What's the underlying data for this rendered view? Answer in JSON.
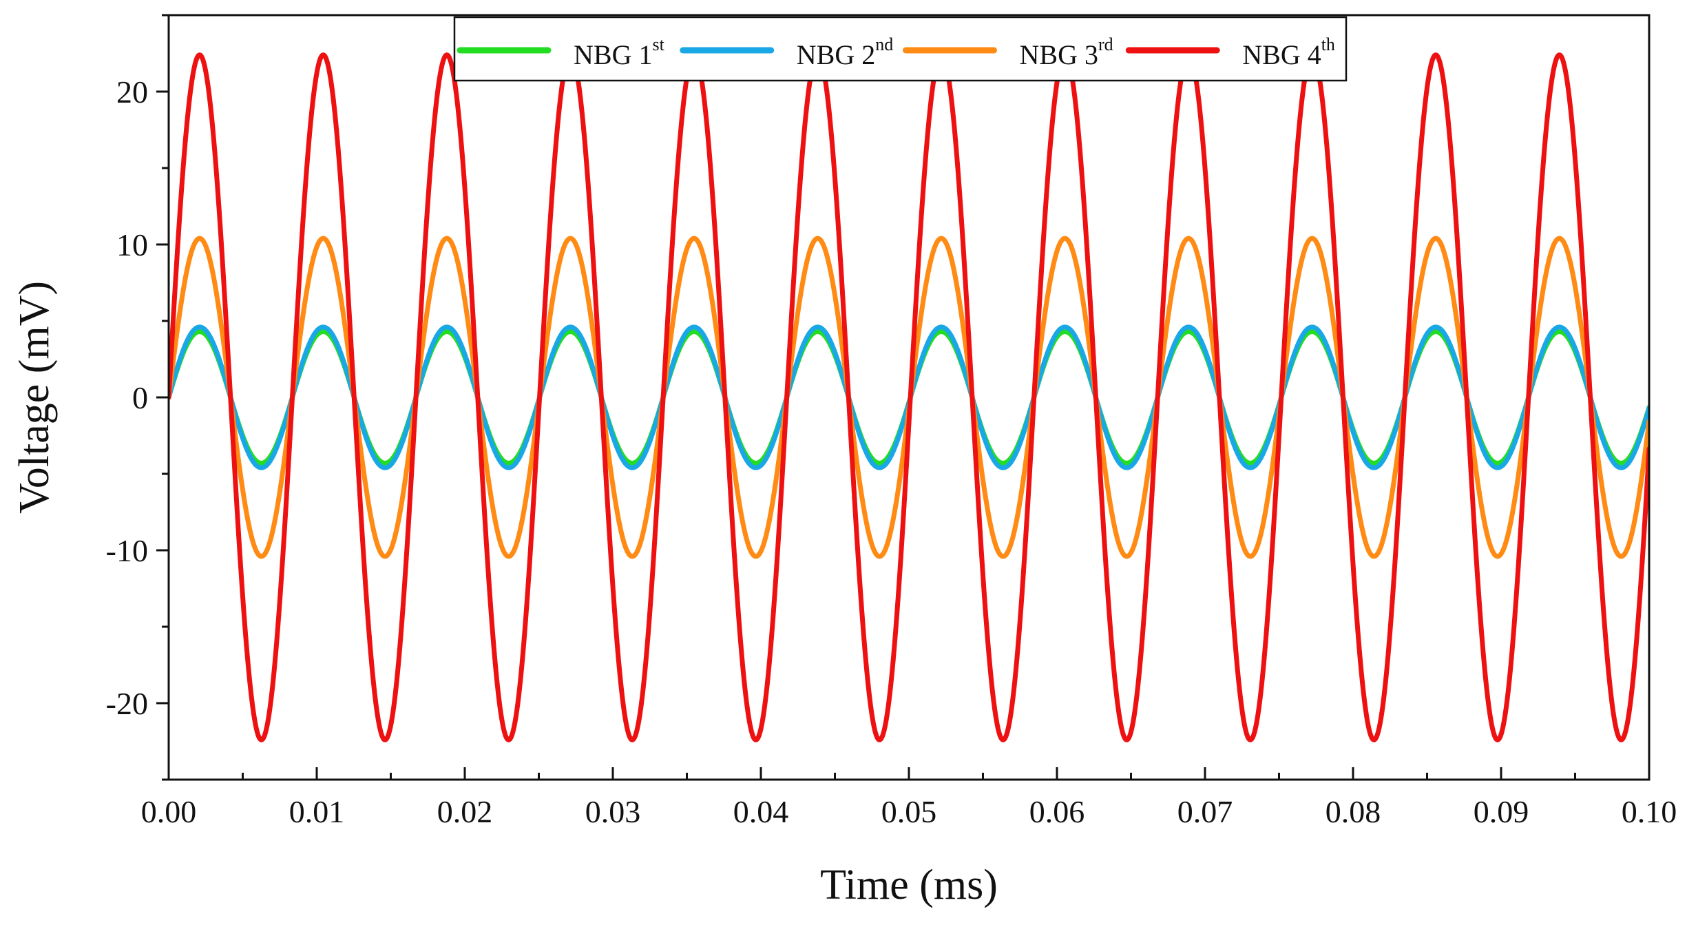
{
  "chart_data": {
    "type": "line",
    "xlabel": "Time (ms)",
    "ylabel": "Voltage (mV)",
    "xlim": [
      0.0,
      0.1
    ],
    "ylim": [
      -25,
      25
    ],
    "x_ticks": [
      "0.00",
      "0.01",
      "0.02",
      "0.03",
      "0.04",
      "0.05",
      "0.06",
      "0.07",
      "0.08",
      "0.09",
      "0.10"
    ],
    "y_ticks": [
      "-20",
      "-10",
      "0",
      "10",
      "20"
    ],
    "grid": false,
    "legend_placement": "top-center, inside plot, single row",
    "series": [
      {
        "name": "NBG 1",
        "name_sup": "st",
        "color": "#22dd22",
        "amplitude_mV": 4.3,
        "period_ms": 0.00835,
        "phase_ms": 0.0
      },
      {
        "name": "NBG 2",
        "name_sup": "nd",
        "color": "#1aa7e6",
        "amplitude_mV": 4.6,
        "period_ms": 0.00835,
        "phase_ms": 0.0
      },
      {
        "name": "NBG 3",
        "name_sup": "rd",
        "color": "#ff8a14",
        "amplitude_mV": 10.4,
        "period_ms": 0.00835,
        "phase_ms": 0.0
      },
      {
        "name": "NBG 4",
        "name_sup": "th",
        "color": "#ee1111",
        "amplitude_mV": 22.4,
        "period_ms": 0.00835,
        "phase_ms": 0.0
      }
    ]
  }
}
